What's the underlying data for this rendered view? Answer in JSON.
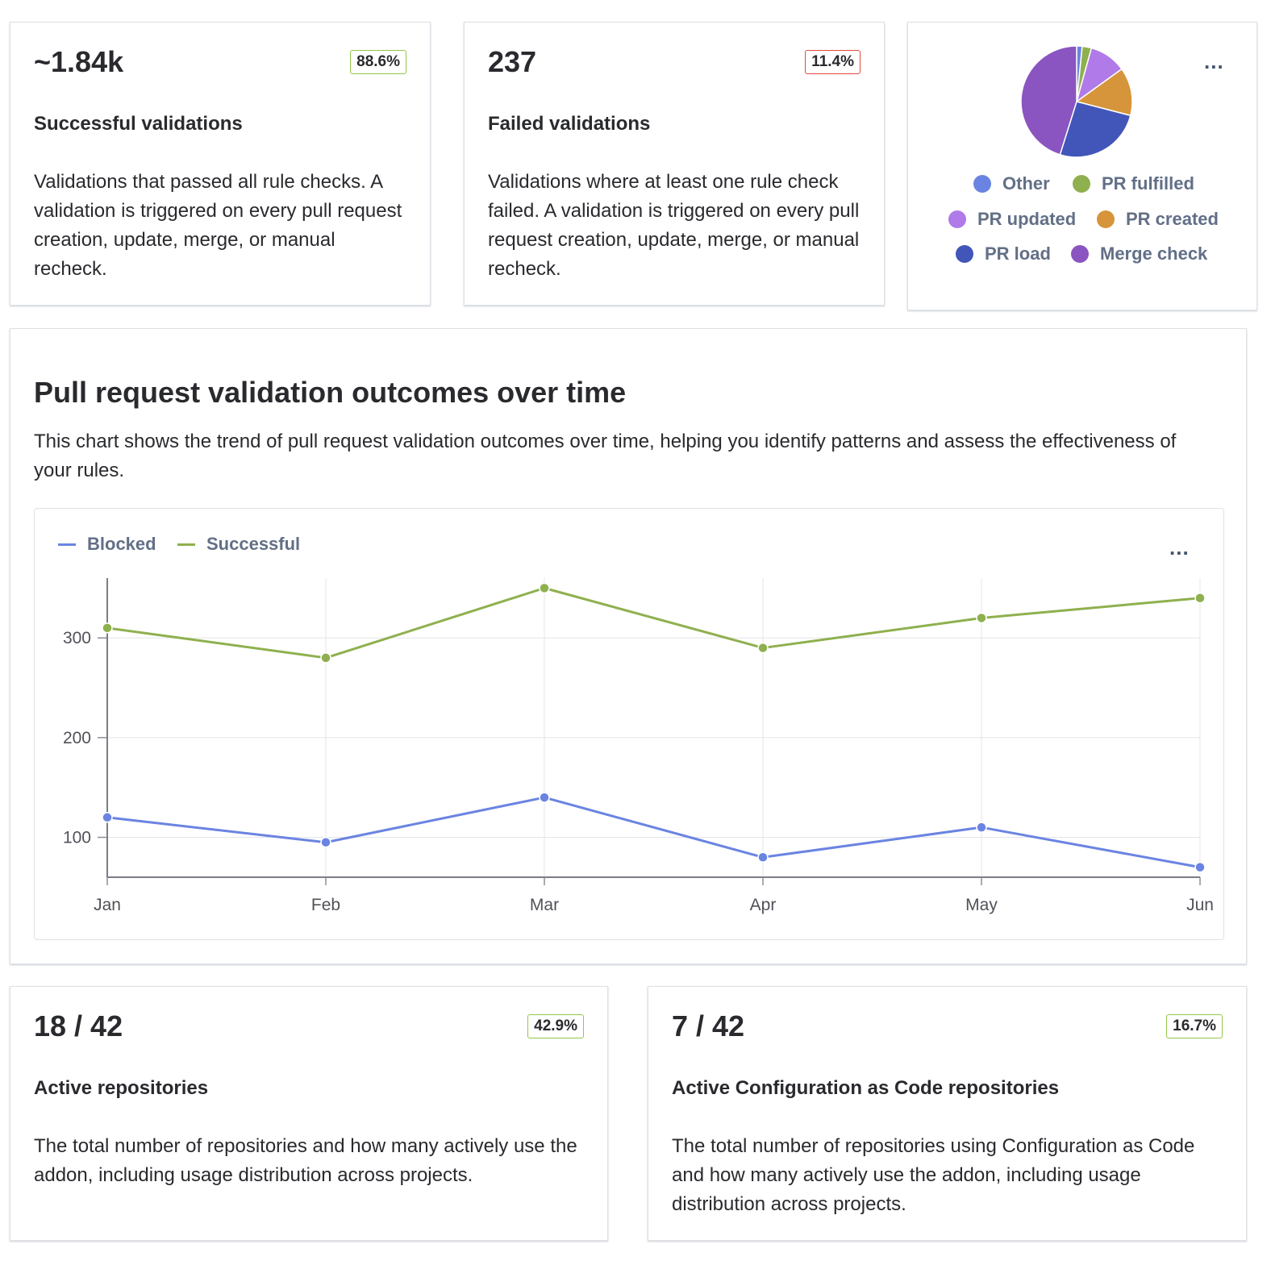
{
  "successful": {
    "value": "~1.84k",
    "badge": "88.6%",
    "title": "Successful validations",
    "description": "Validations that passed all rule checks. A validation is triggered on every pull request creation, update, merge, or manual recheck."
  },
  "failed": {
    "value": "237",
    "badge": "11.4%",
    "title": "Failed validations",
    "description": "Validations where at least one rule check failed. A validation is triggered on every pull request creation, update, merge, or manual recheck."
  },
  "trigger_pie": {
    "more_label": "...",
    "legend": [
      {
        "label": "Other",
        "color": "#6a84e1"
      },
      {
        "label": "PR fulfilled",
        "color": "#8fb04e"
      },
      {
        "label": "PR updated",
        "color": "#b07ae8"
      },
      {
        "label": "PR created",
        "color": "#d6953a"
      },
      {
        "label": "PR load",
        "color": "#4156b8"
      },
      {
        "label": "Merge check",
        "color": "#8a55c0"
      }
    ]
  },
  "outcomes": {
    "title": "Pull request validation outcomes over time",
    "description": "This chart shows the trend of pull request validation outcomes over time, helping you identify patterns and assess the effectiveness of your rules.",
    "more_label": "..."
  },
  "chart_data": [
    {
      "type": "pie",
      "labels": [
        "Other",
        "PR fulfilled",
        "PR updated",
        "PR created",
        "PR load",
        "Merge check"
      ],
      "values": [
        1.5,
        2.5,
        10,
        13,
        24,
        42
      ],
      "colors": [
        "#6a84e1",
        "#8fb04e",
        "#b07ae8",
        "#d6953a",
        "#4156b8",
        "#8a55c0"
      ]
    },
    {
      "type": "line",
      "categories": [
        "Jan",
        "Feb",
        "Mar",
        "Apr",
        "May",
        "Jun"
      ],
      "series": [
        {
          "name": "Blocked",
          "color": "#6a84e1",
          "values": [
            120,
            95,
            140,
            80,
            110,
            70
          ]
        },
        {
          "name": "Successful",
          "color": "#8fb04e",
          "values": [
            310,
            280,
            350,
            290,
            320,
            340
          ]
        }
      ],
      "yticks": [
        100,
        200,
        300
      ],
      "ylim": [
        60,
        360
      ],
      "grid": true,
      "legend": "top-left"
    }
  ],
  "active_repos": {
    "value": "18 / 42",
    "badge": "42.9%",
    "title": "Active repositories",
    "description": "The total number of repositories and how many actively use the addon, including usage distribution across projects."
  },
  "cac_repos": {
    "value": "7 / 42",
    "badge": "16.7%",
    "title": "Active Configuration as Code repositories",
    "description": "The total number of repositories using Configuration as Code and how many actively use the addon, including usage distribution across projects."
  }
}
